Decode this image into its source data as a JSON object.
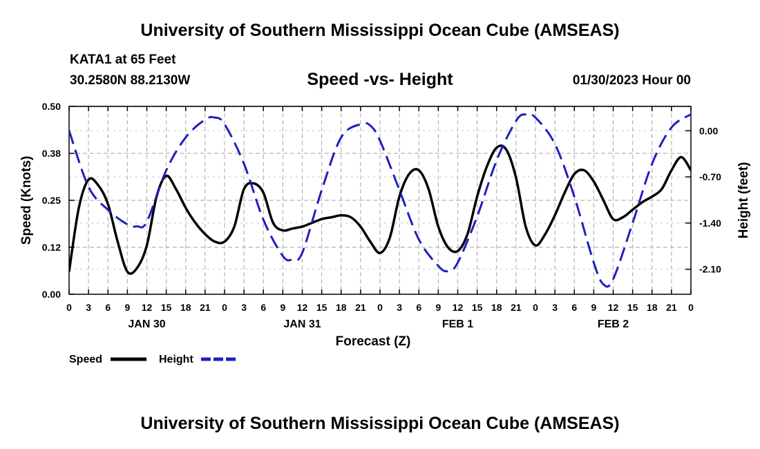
{
  "header": {
    "title": "University of Southern Mississippi Ocean Cube (AMSEAS)",
    "station": "KATA1 at 65 Feet",
    "coordinates": "30.2580N  88.2130W",
    "subtitle": "Speed -vs- Height",
    "date": "01/30/2023 Hour 00"
  },
  "footer": {
    "title": "University of Southern Mississippi Ocean Cube (AMSEAS)"
  },
  "chart_data": {
    "type": "line",
    "xlabel": "Forecast (Z)",
    "ylabel_left": "Speed (Knots)",
    "ylabel_right": "Height (feet)",
    "x_range": [
      0,
      96
    ],
    "ylim_left": [
      0,
      0.5
    ],
    "ylim_right": [
      -2.48,
      0.37
    ],
    "left_ticks": [
      0.0,
      0.125,
      0.25,
      0.375,
      0.5
    ],
    "left_tick_labels": [
      "0.00",
      "0.12",
      "0.25",
      "0.38",
      "0.50"
    ],
    "right_ticks": [
      0.0,
      -0.7,
      -1.4,
      -2.1
    ],
    "right_tick_labels": [
      "0.00",
      "-0.70",
      "-1.40",
      "-2.10"
    ],
    "x_ticks": [
      0,
      3,
      6,
      9,
      12,
      15,
      18,
      21,
      24,
      27,
      30,
      33,
      36,
      39,
      42,
      45,
      48,
      51,
      54,
      57,
      60,
      63,
      66,
      69,
      72,
      75,
      78,
      81,
      84,
      87,
      90,
      93,
      96
    ],
    "x_tick_labels": [
      "0",
      "3",
      "6",
      "9",
      "12",
      "15",
      "18",
      "21",
      "0",
      "3",
      "6",
      "9",
      "12",
      "15",
      "18",
      "21",
      "0",
      "3",
      "6",
      "9",
      "12",
      "15",
      "18",
      "21",
      "0",
      "3",
      "6",
      "9",
      "12",
      "15",
      "18",
      "21",
      "0"
    ],
    "day_labels": [
      {
        "label": "JAN 30",
        "hour": 12
      },
      {
        "label": "JAN 31",
        "hour": 36
      },
      {
        "label": "FEB 1",
        "hour": 60
      },
      {
        "label": "FEB 2",
        "hour": 84
      }
    ],
    "grid": true,
    "legend": [
      "Speed",
      "Height"
    ],
    "series": [
      {
        "name": "Speed",
        "color": "#000000",
        "axis": "left",
        "x": [
          0,
          1.5,
          3,
          4.5,
          6,
          7.5,
          9,
          10.5,
          12,
          13.5,
          15,
          16.5,
          18,
          19.5,
          21,
          22.5,
          24,
          25.5,
          27,
          28.5,
          30,
          31.5,
          33,
          34.5,
          36,
          37.5,
          39,
          40.5,
          42,
          43.5,
          45,
          46.5,
          48,
          49.5,
          51,
          52.5,
          54,
          55.5,
          57,
          58.5,
          60,
          61.5,
          63,
          64.5,
          66,
          67.5,
          69,
          70.5,
          72,
          73.5,
          75,
          76.5,
          78,
          79.5,
          81,
          82.5,
          84,
          85.5,
          87,
          88.5,
          90,
          91.5,
          93,
          94.5,
          96
        ],
        "values": [
          0.06,
          0.23,
          0.305,
          0.29,
          0.24,
          0.14,
          0.06,
          0.07,
          0.13,
          0.26,
          0.315,
          0.28,
          0.23,
          0.19,
          0.16,
          0.14,
          0.14,
          0.18,
          0.28,
          0.295,
          0.27,
          0.19,
          0.17,
          0.175,
          0.18,
          0.19,
          0.2,
          0.205,
          0.21,
          0.205,
          0.18,
          0.14,
          0.11,
          0.15,
          0.26,
          0.32,
          0.33,
          0.28,
          0.18,
          0.125,
          0.115,
          0.16,
          0.26,
          0.34,
          0.39,
          0.385,
          0.31,
          0.18,
          0.13,
          0.16,
          0.21,
          0.27,
          0.32,
          0.33,
          0.3,
          0.25,
          0.2,
          0.205,
          0.225,
          0.245,
          0.26,
          0.28,
          0.33,
          0.365,
          0.33
        ]
      },
      {
        "name": "Height",
        "color": "#1f1fbf",
        "axis": "right",
        "x": [
          0,
          3,
          6,
          9,
          10.5,
          12,
          15,
          18,
          21,
          22.5,
          24,
          27,
          30,
          33,
          34.5,
          36,
          39,
          42,
          45,
          46.5,
          48,
          51,
          54,
          57,
          58.5,
          60,
          63,
          66,
          69,
          70.5,
          72,
          75,
          78,
          81,
          82.5,
          84,
          87,
          90,
          93,
          96
        ],
        "values": [
          0.0,
          -0.85,
          -1.2,
          -1.42,
          -1.45,
          -1.38,
          -0.6,
          -0.1,
          0.17,
          0.2,
          0.1,
          -0.5,
          -1.35,
          -1.9,
          -1.95,
          -1.85,
          -0.9,
          -0.1,
          0.1,
          0.08,
          -0.15,
          -0.9,
          -1.65,
          -2.05,
          -2.13,
          -2.0,
          -1.3,
          -0.45,
          0.15,
          0.25,
          0.2,
          -0.2,
          -1.0,
          -2.0,
          -2.33,
          -2.25,
          -1.4,
          -0.5,
          0.05,
          0.25
        ]
      }
    ]
  }
}
